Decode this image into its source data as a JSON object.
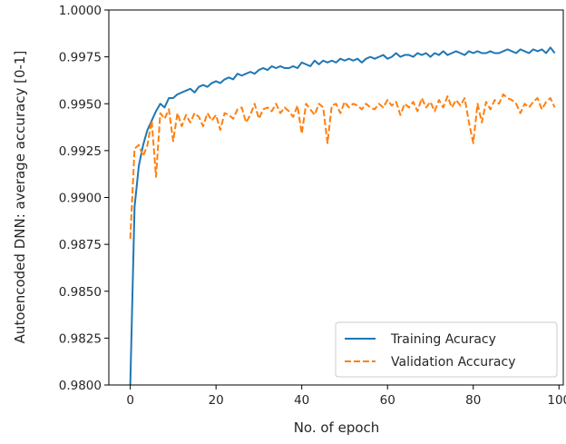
{
  "chart_data": {
    "type": "line",
    "title": "",
    "xlabel": "No. of epoch",
    "ylabel": "Autoencoded DNN: average accuracy [0-1]",
    "xlim": [
      -5,
      101
    ],
    "ylim": [
      0.98,
      1.0
    ],
    "xticks": [
      0,
      20,
      40,
      60,
      80,
      100
    ],
    "yticks": [
      0.98,
      0.9825,
      0.985,
      0.9875,
      0.99,
      0.9925,
      0.995,
      0.9975,
      1.0
    ],
    "xtick_labels": [
      "0",
      "20",
      "40",
      "60",
      "80",
      "100"
    ],
    "ytick_labels": [
      "0.9800",
      "0.9825",
      "0.9850",
      "0.9875",
      "0.9900",
      "0.9925",
      "0.9950",
      "0.9975",
      "1.0000"
    ],
    "grid": false,
    "legend_position": "lower-right",
    "x": [
      0,
      1,
      2,
      3,
      4,
      5,
      6,
      7,
      8,
      9,
      10,
      11,
      12,
      13,
      14,
      15,
      16,
      17,
      18,
      19,
      20,
      21,
      22,
      23,
      24,
      25,
      26,
      27,
      28,
      29,
      30,
      31,
      32,
      33,
      34,
      35,
      36,
      37,
      38,
      39,
      40,
      41,
      42,
      43,
      44,
      45,
      46,
      47,
      48,
      49,
      50,
      51,
      52,
      53,
      54,
      55,
      56,
      57,
      58,
      59,
      60,
      61,
      62,
      63,
      64,
      65,
      66,
      67,
      68,
      69,
      70,
      71,
      72,
      73,
      74,
      75,
      76,
      77,
      78,
      79,
      80,
      81,
      82,
      83,
      84,
      85,
      86,
      87,
      88,
      89,
      90,
      91,
      92,
      93,
      94,
      95,
      96,
      97,
      98,
      99
    ],
    "series": [
      {
        "name": "Training Acuracy",
        "color": "#1f77b4",
        "dash": "solid",
        "values": [
          0.98,
          0.9895,
          0.9917,
          0.9928,
          0.9936,
          0.9941,
          0.9946,
          0.995,
          0.9948,
          0.9953,
          0.9953,
          0.9955,
          0.9956,
          0.9957,
          0.9958,
          0.9956,
          0.9959,
          0.996,
          0.9959,
          0.9961,
          0.9962,
          0.9961,
          0.9963,
          0.9964,
          0.9963,
          0.9966,
          0.9965,
          0.9966,
          0.9967,
          0.9966,
          0.9968,
          0.9969,
          0.9968,
          0.997,
          0.9969,
          0.997,
          0.9969,
          0.9969,
          0.997,
          0.9969,
          0.9972,
          0.9971,
          0.997,
          0.9973,
          0.9971,
          0.9973,
          0.9972,
          0.9973,
          0.9972,
          0.9974,
          0.9973,
          0.9974,
          0.9973,
          0.9974,
          0.9972,
          0.9974,
          0.9975,
          0.9974,
          0.9975,
          0.9976,
          0.9974,
          0.9975,
          0.9977,
          0.9975,
          0.9976,
          0.9976,
          0.9975,
          0.9977,
          0.9976,
          0.9977,
          0.9975,
          0.9977,
          0.9976,
          0.9978,
          0.9976,
          0.9977,
          0.9978,
          0.9977,
          0.9976,
          0.9978,
          0.9977,
          0.9978,
          0.9977,
          0.9977,
          0.9978,
          0.9977,
          0.9977,
          0.9978,
          0.9979,
          0.9978,
          0.9977,
          0.9979,
          0.9978,
          0.9977,
          0.9979,
          0.9978,
          0.9979,
          0.9977,
          0.998,
          0.9977
        ]
      },
      {
        "name": "Validation Accuracy",
        "color": "#ff7f0e",
        "dash": "dashed",
        "values": [
          0.9878,
          0.9926,
          0.9928,
          0.9922,
          0.9928,
          0.9941,
          0.9911,
          0.9945,
          0.9942,
          0.9947,
          0.993,
          0.9945,
          0.9938,
          0.9944,
          0.994,
          0.9945,
          0.9943,
          0.9938,
          0.9945,
          0.9941,
          0.9944,
          0.9936,
          0.9945,
          0.9944,
          0.9942,
          0.9947,
          0.9948,
          0.994,
          0.9944,
          0.995,
          0.9942,
          0.9947,
          0.9948,
          0.9946,
          0.995,
          0.9945,
          0.9948,
          0.9946,
          0.9943,
          0.9949,
          0.9934,
          0.995,
          0.9947,
          0.9944,
          0.995,
          0.9948,
          0.9929,
          0.9949,
          0.995,
          0.9945,
          0.9951,
          0.9948,
          0.995,
          0.9949,
          0.9947,
          0.995,
          0.9948,
          0.9947,
          0.995,
          0.9948,
          0.9952,
          0.9949,
          0.9951,
          0.9944,
          0.995,
          0.9948,
          0.9951,
          0.9946,
          0.9953,
          0.9948,
          0.9951,
          0.9946,
          0.9952,
          0.9948,
          0.9954,
          0.9948,
          0.9952,
          0.9949,
          0.9953,
          0.994,
          0.9929,
          0.995,
          0.994,
          0.9951,
          0.9947,
          0.9952,
          0.995,
          0.9955,
          0.9953,
          0.9952,
          0.995,
          0.9945,
          0.995,
          0.9948,
          0.9951,
          0.9953,
          0.9947,
          0.9951,
          0.9953,
          0.9948
        ]
      }
    ]
  }
}
